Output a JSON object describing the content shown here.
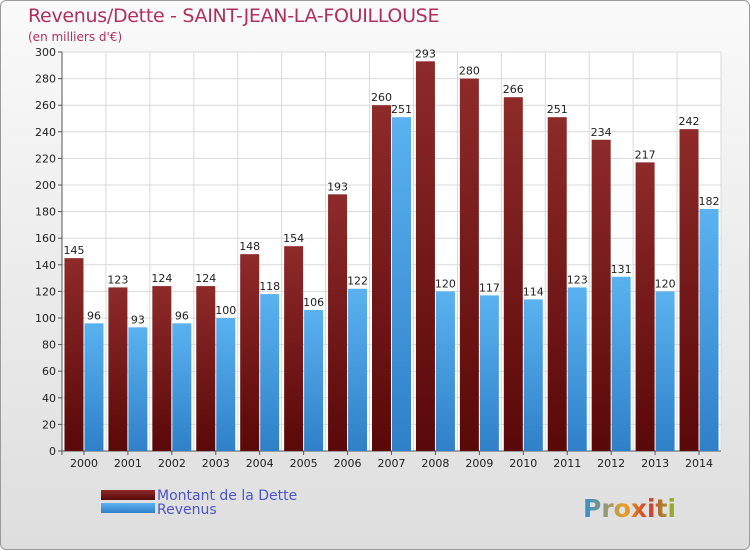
{
  "header": {
    "title": "Revenus/Dette - SAINT-JEAN-LA-FOUILLOUSE",
    "subtitle": "(en milliers d'€)"
  },
  "logo": {
    "text": "Proxiti"
  },
  "chart_data": {
    "type": "bar",
    "title": "Revenus/Dette - SAINT-JEAN-LA-FOUILLOUSE",
    "subtitle": "(en milliers d'€)",
    "categories": [
      "2000",
      "2001",
      "2002",
      "2003",
      "2004",
      "2005",
      "2006",
      "2007",
      "2008",
      "2009",
      "2010",
      "2011",
      "2012",
      "2013",
      "2014"
    ],
    "series": [
      {
        "name": "Montant de la Dette",
        "color": "#7a1818",
        "values": [
          145,
          123,
          124,
          124,
          148,
          154,
          193,
          260,
          293,
          280,
          266,
          251,
          234,
          217,
          242
        ]
      },
      {
        "name": "Revenus",
        "color": "#4aa3e8",
        "values": [
          96,
          93,
          96,
          100,
          118,
          106,
          122,
          251,
          120,
          117,
          114,
          123,
          131,
          120,
          182
        ]
      }
    ],
    "ylim": [
      0,
      300
    ],
    "ytick_step": 20,
    "grid": true,
    "legend_position": "bottom-left"
  }
}
